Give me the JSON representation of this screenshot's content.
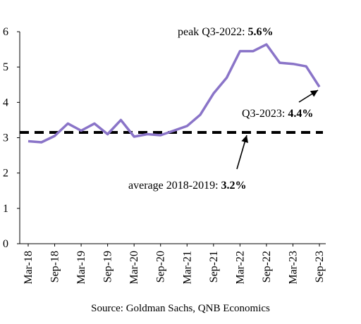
{
  "chart_data": {
    "type": "line",
    "x": [
      "2018-03",
      "2018-06",
      "2018-09",
      "2018-12",
      "2019-03",
      "2019-06",
      "2019-09",
      "2019-12",
      "2020-03",
      "2020-06",
      "2020-09",
      "2020-12",
      "2021-03",
      "2021-06",
      "2021-09",
      "2021-12",
      "2022-03",
      "2022-06",
      "2022-09",
      "2022-12",
      "2023-03",
      "2023-06",
      "2023-09"
    ],
    "series": [
      {
        "values": [
          2.9,
          2.87,
          3.05,
          3.4,
          3.2,
          3.4,
          3.1,
          3.5,
          3.03,
          3.1,
          3.07,
          3.2,
          3.33,
          3.65,
          4.25,
          4.7,
          5.45,
          5.45,
          5.64,
          5.12,
          5.09,
          5.02,
          4.44
        ],
        "color": "#8a74c8"
      }
    ],
    "average": {
      "value": 3.15,
      "color": "#000000"
    },
    "x_tick_labels": [
      "Mar-18",
      "Sep-18",
      "Mar-19",
      "Sep-19",
      "Mar-20",
      "Sep-20",
      "Mar-21",
      "Sep-21",
      "Mar-22",
      "Sep-22",
      "Mar-23",
      "Sep-23"
    ],
    "y_ticks": [
      0,
      1,
      2,
      3,
      4,
      5,
      6
    ],
    "ylim": [
      0,
      6
    ],
    "grid": false,
    "legend": "none",
    "annotations": {
      "peak": {
        "text": "peak Q3-2022: ",
        "value_text": "5.6%"
      },
      "latest": {
        "text": "Q3-2023: ",
        "value_text": "4.4%"
      },
      "average": {
        "text": "average 2018-2019: ",
        "value_text": "3.2%"
      }
    }
  },
  "source": "Source: Goldman Sachs, QNB Economics"
}
